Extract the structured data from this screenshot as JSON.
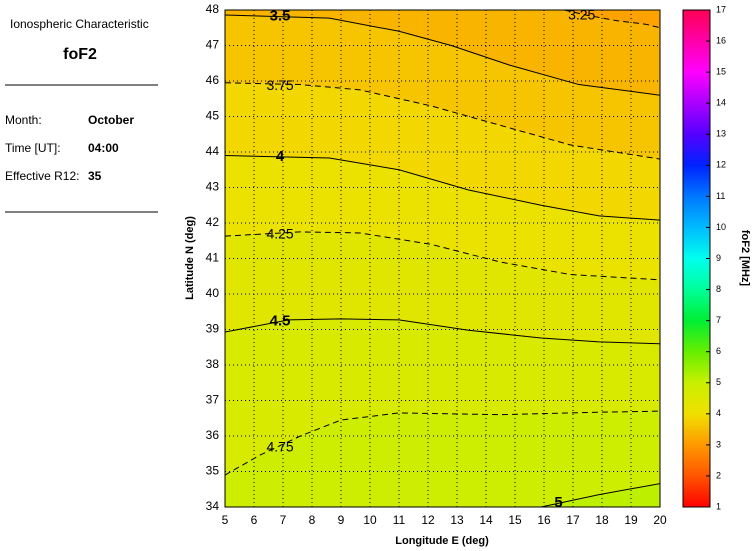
{
  "panel": {
    "heading": "Ionospheric Characteristic",
    "parameter": "foF2",
    "rows": [
      [
        "Month:",
        "October"
      ],
      [
        "Time [UT]:",
        "04:00"
      ],
      [
        "Effective R12:",
        "35"
      ]
    ]
  },
  "chart_data": {
    "type": "contour",
    "xlabel": "Longitude E (deg)",
    "ylabel": "Latitude N (deg)",
    "xlim": [
      5,
      20
    ],
    "xticks": [
      5,
      6,
      7,
      8,
      9,
      10,
      11,
      12,
      13,
      14,
      15,
      16,
      17,
      18,
      19,
      20
    ],
    "ylim": [
      34,
      48
    ],
    "yticks": [
      34,
      35,
      36,
      37,
      38,
      39,
      40,
      41,
      42,
      43,
      44,
      45,
      46,
      47,
      48
    ],
    "grid": true,
    "contours": [
      {
        "level": 3.25,
        "style": "dashed",
        "x": [
          16.7,
          17.5,
          18.5,
          19.5,
          20
        ],
        "y": [
          48,
          47.85,
          47.7,
          47.6,
          47.5
        ]
      },
      {
        "level": 3.5,
        "style": "solid",
        "x": [
          5,
          8.6,
          11,
          12.8,
          14.8,
          17.2,
          20
        ],
        "y": [
          47.86,
          47.77,
          47.4,
          47.0,
          46.45,
          45.9,
          45.6
        ]
      },
      {
        "level": 3.75,
        "style": "dashed",
        "x": [
          5,
          7.6,
          9.65,
          12.1,
          14.5,
          16.9,
          20
        ],
        "y": [
          45.95,
          45.9,
          45.75,
          45.3,
          44.75,
          44.2,
          43.8
        ]
      },
      {
        "level": 4,
        "style": "solid",
        "x": [
          5,
          8.6,
          11,
          13.4,
          15.9,
          17.9,
          20
        ],
        "y": [
          43.9,
          43.83,
          43.5,
          42.93,
          42.5,
          42.2,
          42.08
        ]
      },
      {
        "level": 4.25,
        "style": "dashed",
        "x": [
          5,
          7.6,
          9.65,
          12.1,
          14.5,
          16.9,
          20
        ],
        "y": [
          41.63,
          41.75,
          41.72,
          41.4,
          40.9,
          40.55,
          40.4
        ]
      },
      {
        "level": 4.5,
        "style": "solid",
        "x": [
          5,
          7.2,
          9,
          11,
          13.4,
          15.9,
          17.9,
          20
        ],
        "y": [
          38.93,
          39.27,
          39.3,
          39.27,
          38.98,
          38.76,
          38.65,
          38.6
        ]
      },
      {
        "level": 4.75,
        "style": "dashed",
        "x": [
          5,
          6.2,
          7.6,
          9,
          11,
          14.5,
          17.9,
          20
        ],
        "y": [
          34.9,
          35.46,
          36.0,
          36.45,
          36.65,
          36.6,
          36.67,
          36.7
        ]
      },
      {
        "level": 5,
        "style": "solid",
        "x": [
          15.9,
          17.9,
          20
        ],
        "y": [
          34,
          34.35,
          34.66
        ]
      }
    ],
    "colorbar": {
      "label": "foF2 [MHz]",
      "lim": [
        1,
        17
      ],
      "ticks": [
        1,
        2,
        3,
        4,
        5,
        6,
        7,
        8,
        9,
        10,
        11,
        12,
        13,
        14,
        15,
        16,
        17
      ],
      "colors": [
        "#ff0000",
        "#ff5500",
        "#ff9900",
        "#f0e000",
        "#c8f000",
        "#66ee00",
        "#00ee33",
        "#00ff99",
        "#00ffee",
        "#00bbff",
        "#0077ff",
        "#0022ff",
        "#5500ff",
        "#aa00ff",
        "#ff00ff",
        "#ff00aa",
        "#ff0055"
      ]
    }
  }
}
